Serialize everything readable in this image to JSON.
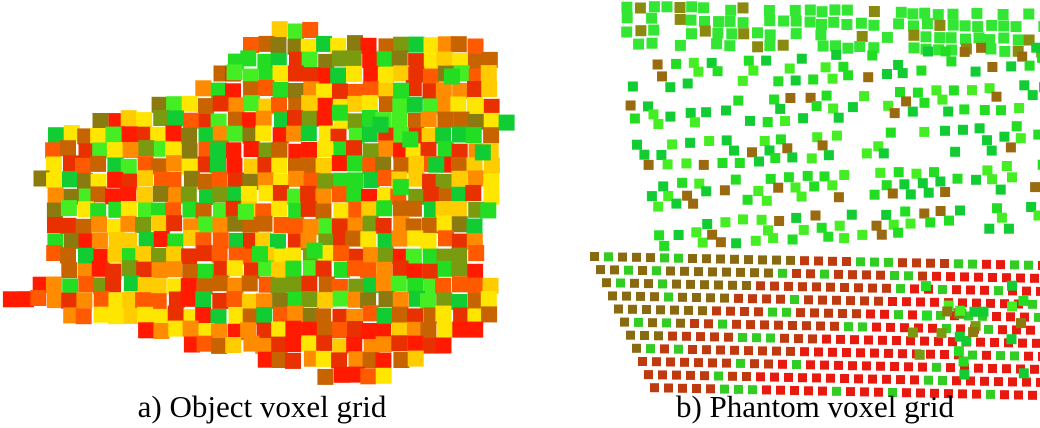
{
  "panels": [
    {
      "caption": "a) Object voxel grid"
    },
    {
      "caption": "b) Phantom voxel grid"
    }
  ]
}
